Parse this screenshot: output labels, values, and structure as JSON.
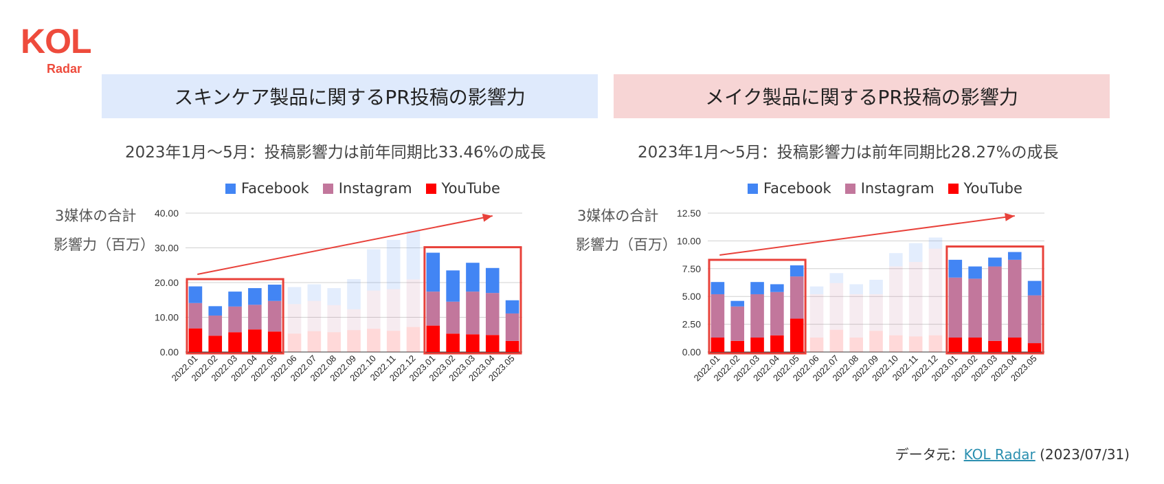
{
  "logo": {
    "text": "KOL",
    "sub": "Radar"
  },
  "colors": {
    "facebook": "#4285f4",
    "instagram": "#c2779c",
    "youtube": "#ff0000",
    "highlight": "#e8413a",
    "arrow": "#e8413a"
  },
  "panels": [
    {
      "title": "スキンケア製品に関するPR投稿の影響力",
      "subtitle": "2023年1月〜5月：投稿影響力は前年同期比33.46%の成長"
    },
    {
      "title": "メイク製品に関するPR投稿の影響力",
      "subtitle": "2023年1月〜5月：投稿影響力は前年同期比28.27%の成長"
    }
  ],
  "legend": [
    {
      "label": "Facebook",
      "color": "#4285f4"
    },
    {
      "label": "Instagram",
      "color": "#c2779c"
    },
    {
      "label": "YouTube",
      "color": "#ff0000"
    }
  ],
  "ylabel_line1": "3媒体の合計",
  "ylabel_line2": "影響力（百万）",
  "source": {
    "prefix": "データ元：",
    "link": "KOL Radar",
    "date": "(2023/07/31)"
  },
  "chart_data": [
    {
      "type": "bar",
      "stacked": true,
      "categories": [
        "2022.01",
        "2022.02",
        "2022.03",
        "2022.04",
        "2022.05",
        "2022.06",
        "2022.07",
        "2022.08",
        "2022.09",
        "2022.10",
        "2022.11",
        "2022.12",
        "2023.01",
        "2023.02",
        "2023.03",
        "2023.04",
        "2023.05"
      ],
      "series": [
        {
          "name": "YouTube",
          "values": [
            6.8,
            4.7,
            5.7,
            6.5,
            5.9,
            5.3,
            6.0,
            5.7,
            6.3,
            6.7,
            6.1,
            7.2,
            7.6,
            5.3,
            5.1,
            4.9,
            3.2
          ]
        },
        {
          "name": "Instagram",
          "values": [
            7.3,
            5.8,
            7.4,
            7.1,
            8.8,
            8.5,
            8.7,
            7.8,
            6.0,
            11.0,
            12.0,
            13.7,
            9.8,
            9.2,
            12.3,
            12.1,
            7.9
          ]
        },
        {
          "name": "Facebook",
          "values": [
            4.8,
            2.7,
            4.3,
            4.8,
            4.7,
            4.9,
            4.8,
            4.9,
            8.7,
            11.9,
            14.2,
            14.0,
            11.2,
            9.0,
            8.3,
            7.2,
            3.8
          ]
        }
      ],
      "faded_categories": [
        "2022.06",
        "2022.07",
        "2022.08",
        "2022.09",
        "2022.10",
        "2022.11",
        "2022.12"
      ],
      "highlight_groups": [
        [
          "2022.01",
          "2022.05"
        ],
        [
          "2023.01",
          "2023.05"
        ]
      ],
      "yticks": [
        "0.00",
        "10.00",
        "20.00",
        "30.00",
        "40.00"
      ],
      "ylim": [
        0,
        40
      ]
    },
    {
      "type": "bar",
      "stacked": true,
      "categories": [
        "2022.01",
        "2022.02",
        "2022.03",
        "2022.04",
        "2022.05",
        "2022.06",
        "2022.07",
        "2022.08",
        "2022.09",
        "2022.10",
        "2022.11",
        "2022.12",
        "2023.01",
        "2023.02",
        "2023.03",
        "2023.04",
        "2023.05"
      ],
      "series": [
        {
          "name": "YouTube",
          "values": [
            1.3,
            1.0,
            1.3,
            1.5,
            3.0,
            1.3,
            2.0,
            1.3,
            1.9,
            1.5,
            1.4,
            1.5,
            1.3,
            1.3,
            1.0,
            1.3,
            0.8
          ]
        },
        {
          "name": "Instagram",
          "values": [
            3.9,
            3.1,
            3.9,
            3.9,
            3.8,
            3.9,
            4.2,
            3.9,
            3.3,
            6.2,
            6.7,
            7.8,
            5.4,
            5.3,
            6.7,
            7.0,
            4.3
          ]
        },
        {
          "name": "Facebook",
          "values": [
            1.1,
            0.5,
            1.1,
            0.7,
            1.0,
            0.7,
            0.9,
            0.9,
            1.3,
            1.2,
            1.7,
            1.0,
            1.6,
            1.1,
            0.8,
            0.7,
            1.3
          ]
        }
      ],
      "faded_categories": [
        "2022.06",
        "2022.07",
        "2022.08",
        "2022.09",
        "2022.10",
        "2022.11",
        "2022.12"
      ],
      "highlight_groups": [
        [
          "2022.01",
          "2022.05"
        ],
        [
          "2023.01",
          "2023.05"
        ]
      ],
      "yticks": [
        "0.00",
        "2.50",
        "5.00",
        "7.50",
        "10.00",
        "12.50"
      ],
      "ylim": [
        0,
        12.5
      ]
    }
  ]
}
